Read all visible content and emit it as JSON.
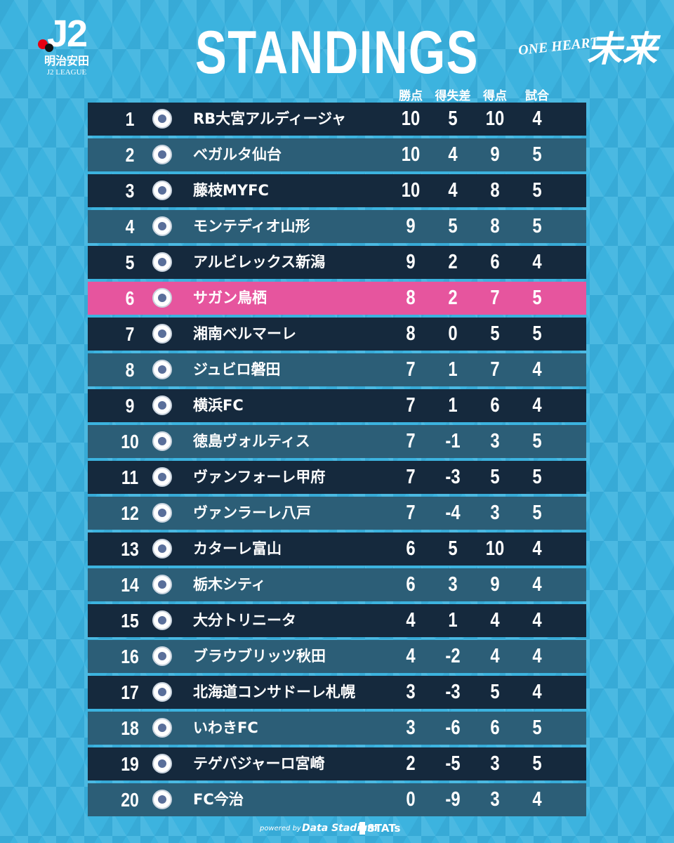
{
  "header": {
    "logo": "J2",
    "league_jp": "明治安田",
    "league_en": "J2 LEAGUE",
    "title": "STANDINGS",
    "slogan_en": "ONE HEART",
    "slogan_jp": "未来"
  },
  "table": {
    "columns": [
      "勝点",
      "得失差",
      "得点",
      "試合"
    ],
    "rows": [
      [
        1,
        "RB大宮アルディージャ",
        10,
        5,
        10,
        4
      ],
      [
        2,
        "ベガルタ仙台",
        10,
        4,
        9,
        5
      ],
      [
        3,
        "藤枝MYFC",
        10,
        4,
        8,
        5
      ],
      [
        4,
        "モンテディオ山形",
        9,
        5,
        8,
        5
      ],
      [
        5,
        "アルビレックス新潟",
        9,
        2,
        6,
        4
      ],
      [
        6,
        "サガン鳥栖",
        8,
        2,
        7,
        5
      ],
      [
        7,
        "湘南ベルマーレ",
        8,
        0,
        5,
        5
      ],
      [
        8,
        "ジュビロ磐田",
        7,
        1,
        7,
        4
      ],
      [
        9,
        "横浜FC",
        7,
        1,
        6,
        4
      ],
      [
        10,
        "徳島ヴォルティス",
        7,
        -1,
        3,
        5
      ],
      [
        11,
        "ヴァンフォーレ甲府",
        7,
        -3,
        5,
        5
      ],
      [
        12,
        "ヴァンラーレ八戸",
        7,
        -4,
        3,
        5
      ],
      [
        13,
        "カターレ富山",
        6,
        5,
        10,
        4
      ],
      [
        14,
        "栃木シティ",
        6,
        3,
        9,
        4
      ],
      [
        15,
        "大分トリニータ",
        4,
        1,
        4,
        4
      ],
      [
        16,
        "ブラウブリッツ秋田",
        4,
        -2,
        4,
        4
      ],
      [
        17,
        "北海道コンサドーレ札幌",
        3,
        -3,
        5,
        4
      ],
      [
        18,
        "いわきFC",
        3,
        -6,
        6,
        5
      ],
      [
        19,
        "テゲバジャーロ宮崎",
        2,
        -5,
        3,
        5
      ],
      [
        20,
        "FC今治",
        0,
        -9,
        3,
        4
      ]
    ]
  },
  "footer": {
    "powered_by": "powered by",
    "data_stadium": "Data Stadium",
    "stats": "STATs"
  }
}
